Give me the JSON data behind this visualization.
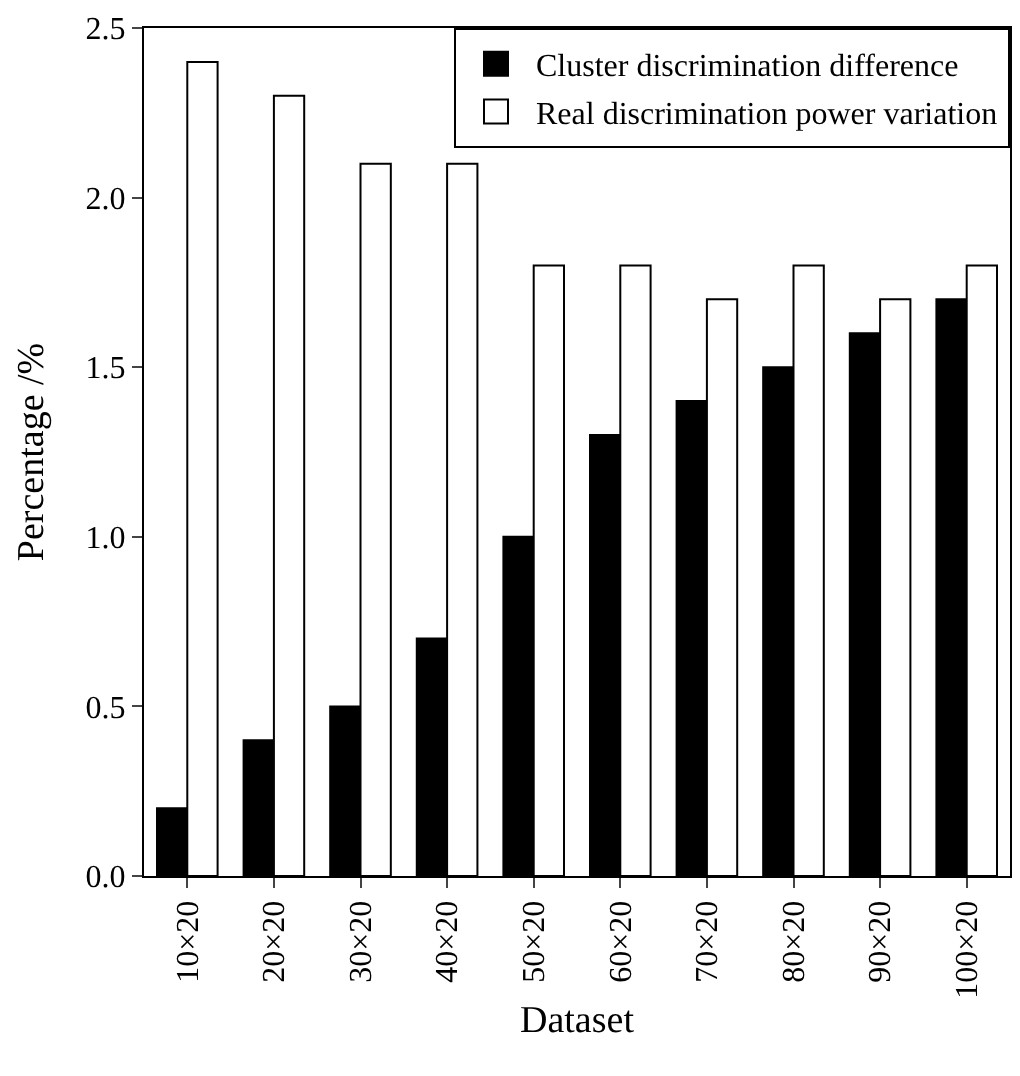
{
  "chart_data": {
    "type": "bar",
    "xlabel": "Dataset",
    "ylabel": "Percentage /%",
    "categories": [
      "10×20",
      "20×20",
      "30×20",
      "40×20",
      "50×20",
      "60×20",
      "70×20",
      "80×20",
      "90×20",
      "100×20"
    ],
    "series": [
      {
        "name": "Cluster discrimination difference",
        "color": "#000000",
        "values": [
          0.2,
          0.4,
          0.5,
          0.7,
          1.0,
          1.3,
          1.4,
          1.5,
          1.6,
          1.7
        ]
      },
      {
        "name": "Real discrimination power variation",
        "color": "#ffffff",
        "values": [
          2.4,
          2.3,
          2.1,
          2.1,
          1.8,
          1.8,
          1.7,
          1.8,
          1.7,
          1.8
        ]
      }
    ],
    "ylim": [
      0,
      2.5
    ],
    "yticks": [
      {
        "value": 0,
        "label": "0.0"
      },
      {
        "value": 0.5,
        "label": "0.5"
      },
      {
        "value": 1,
        "label": "1.0"
      },
      {
        "value": 1.5,
        "label": "1.5"
      },
      {
        "value": 2,
        "label": "2.0"
      },
      {
        "value": 2.5,
        "label": "2.5"
      }
    ],
    "legend": "top right"
  }
}
